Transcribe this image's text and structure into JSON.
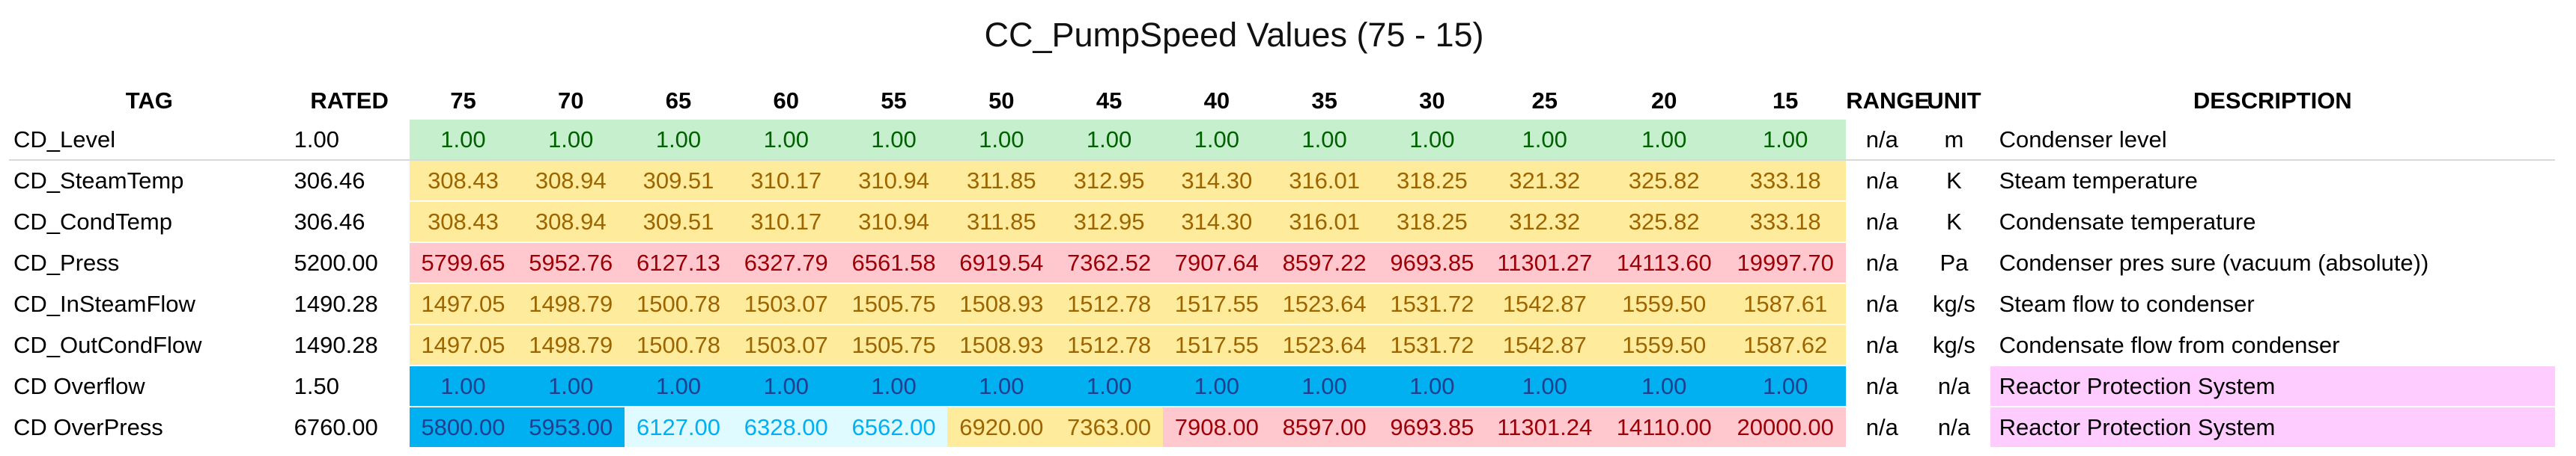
{
  "title": "CC_PumpSpeed Values (75 - 15)",
  "headers": [
    "TAG",
    "RATED",
    "75",
    "70",
    "65",
    "60",
    "55",
    "50",
    "45",
    "40",
    "35",
    "30",
    "25",
    "20",
    "15",
    "RANGE",
    "UNIT",
    "DESCRIPTION"
  ],
  "colors": {
    "green": "#c6efce",
    "yellow": "#ffeb9c",
    "red": "#ffc7ce",
    "blue": "#00b0f0",
    "cyan": "#e0fbff",
    "pink": "#ffccff"
  },
  "rows": [
    {
      "tag": "CD_Level",
      "rated": "1.00",
      "values": [
        "1.00",
        "1.00",
        "1.00",
        "1.00",
        "1.00",
        "1.00",
        "1.00",
        "1.00",
        "1.00",
        "1.00",
        "1.00",
        "1.00",
        "1.00"
      ],
      "styles": [
        "green",
        "green",
        "green",
        "green",
        "green",
        "green",
        "green",
        "green",
        "green",
        "green",
        "green",
        "green",
        "green"
      ],
      "range": "n/a",
      "unit": "m",
      "description": "Condenser level",
      "desc_style": ""
    },
    {
      "tag": "CD_SteamTemp",
      "rated": "306.46",
      "values": [
        "308.43",
        "308.94",
        "309.51",
        "310.17",
        "310.94",
        "311.85",
        "312.95",
        "314.30",
        "316.01",
        "318.25",
        "321.32",
        "325.82",
        "333.18"
      ],
      "styles": [
        "yellow",
        "yellow",
        "yellow",
        "yellow",
        "yellow",
        "yellow",
        "yellow",
        "yellow",
        "yellow",
        "yellow",
        "yellow",
        "yellow",
        "yellow"
      ],
      "range": "n/a",
      "unit": "K",
      "description": "Steam temperature",
      "desc_style": ""
    },
    {
      "tag": "CD_CondTemp",
      "rated": "306.46",
      "values": [
        "308.43",
        "308.94",
        "309.51",
        "310.17",
        "310.94",
        "311.85",
        "312.95",
        "314.30",
        "316.01",
        "318.25",
        "312.32",
        "325.82",
        "333.18"
      ],
      "styles": [
        "yellow",
        "yellow",
        "yellow",
        "yellow",
        "yellow",
        "yellow",
        "yellow",
        "yellow",
        "yellow",
        "yellow",
        "yellow",
        "yellow",
        "yellow"
      ],
      "range": "n/a",
      "unit": "K",
      "description": "Condensate temperature",
      "desc_style": ""
    },
    {
      "tag": "CD_Press",
      "rated": "5200.00",
      "values": [
        "5799.65",
        "5952.76",
        "6127.13",
        "6327.79",
        "6561.58",
        "6919.54",
        "7362.52",
        "7907.64",
        "8597.22",
        "9693.85",
        "11301.27",
        "14113.60",
        "19997.70"
      ],
      "styles": [
        "red",
        "red",
        "red",
        "red",
        "red",
        "red",
        "red",
        "red",
        "red",
        "red",
        "red",
        "red",
        "red"
      ],
      "range": "n/a",
      "unit": "Pa",
      "description": "Condenser pres sure (vacuum (absolute))",
      "desc_style": ""
    },
    {
      "tag": "CD_InSteamFlow",
      "rated": "1490.28",
      "values": [
        "1497.05",
        "1498.79",
        "1500.78",
        "1503.07",
        "1505.75",
        "1508.93",
        "1512.78",
        "1517.55",
        "1523.64",
        "1531.72",
        "1542.87",
        "1559.50",
        "1587.61"
      ],
      "styles": [
        "yellow",
        "yellow",
        "yellow",
        "yellow",
        "yellow",
        "yellow",
        "yellow",
        "yellow",
        "yellow",
        "yellow",
        "yellow",
        "yellow",
        "yellow"
      ],
      "range": "n/a",
      "unit": "kg/s",
      "description": "Steam flow to condenser",
      "desc_style": ""
    },
    {
      "tag": "CD_OutCondFlow",
      "rated": "1490.28",
      "values": [
        "1497.05",
        "1498.79",
        "1500.78",
        "1503.07",
        "1505.75",
        "1508.93",
        "1512.78",
        "1517.55",
        "1523.64",
        "1531.72",
        "1542.87",
        "1559.50",
        "1587.62"
      ],
      "styles": [
        "yellow",
        "yellow",
        "yellow",
        "yellow",
        "yellow",
        "yellow",
        "yellow",
        "yellow",
        "yellow",
        "yellow",
        "yellow",
        "yellow",
        "yellow"
      ],
      "range": "n/a",
      "unit": "kg/s",
      "description": "Condensate flow from condenser",
      "desc_style": ""
    },
    {
      "tag": "CD Overflow",
      "rated": "1.50",
      "values": [
        "1.00",
        "1.00",
        "1.00",
        "1.00",
        "1.00",
        "1.00",
        "1.00",
        "1.00",
        "1.00",
        "1.00",
        "1.00",
        "1.00",
        "1.00"
      ],
      "styles": [
        "blue",
        "blue",
        "blue",
        "blue",
        "blue",
        "blue",
        "blue",
        "blue",
        "blue",
        "blue",
        "blue",
        "blue",
        "blue"
      ],
      "range": "n/a",
      "unit": "n/a",
      "description": "Reactor Protection System",
      "desc_style": "pink"
    },
    {
      "tag": "CD OverPress",
      "rated": "6760.00",
      "values": [
        "5800.00",
        "5953.00",
        "6127.00",
        "6328.00",
        "6562.00",
        "6920.00",
        "7363.00",
        "7908.00",
        "8597.00",
        "9693.85",
        "11301.24",
        "14110.00",
        "20000.00"
      ],
      "styles": [
        "blue",
        "blue",
        "cyan",
        "cyan",
        "cyan",
        "yellow",
        "yellow",
        "red",
        "red",
        "red",
        "red",
        "red",
        "red"
      ],
      "range": "n/a",
      "unit": "n/a",
      "description": "Reactor Protection System",
      "desc_style": "pink"
    }
  ]
}
